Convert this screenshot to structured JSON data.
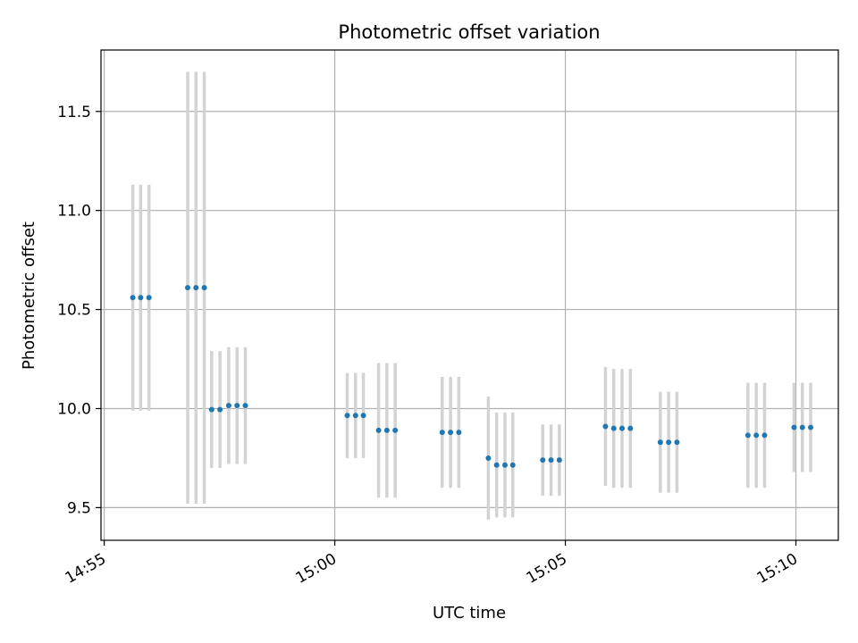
{
  "chart_data": {
    "type": "scatter",
    "title": "Photometric offset variation",
    "xlabel": "UTC time",
    "ylabel": "Photometric offset",
    "x_unit": "minutes past 14:00 UTC",
    "x_tick_values": [
      55,
      60,
      65,
      70
    ],
    "x_tick_labels": [
      "14:55",
      "15:00",
      "15:05",
      "15:10"
    ],
    "y_ticks": [
      9.5,
      10.0,
      10.5,
      11.0,
      11.5
    ],
    "y_tick_labels": [
      "9.5",
      "10.0",
      "10.5",
      "11.0",
      "11.5"
    ],
    "xlim": [
      54.93,
      70.92
    ],
    "ylim": [
      9.335,
      11.81
    ],
    "grid": true,
    "colors": {
      "point": "#1f77b4",
      "errorbar": "#d3d3d3",
      "grid": "#b0b0b0"
    },
    "series": [
      {
        "points": [
          {
            "x": 55.62,
            "y": 10.56,
            "err": 0.57
          },
          {
            "x": 55.79,
            "y": 10.56,
            "err": 0.57
          },
          {
            "x": 55.97,
            "y": 10.56,
            "err": 0.57
          },
          {
            "x": 56.81,
            "y": 10.61,
            "err": 1.09
          },
          {
            "x": 56.99,
            "y": 10.61,
            "err": 1.09
          },
          {
            "x": 57.17,
            "y": 10.61,
            "err": 1.09
          },
          {
            "x": 57.33,
            "y": 9.995,
            "err": 0.295
          },
          {
            "x": 57.51,
            "y": 9.995,
            "err": 0.295
          },
          {
            "x": 57.7,
            "y": 10.015,
            "err": 0.295
          },
          {
            "x": 57.88,
            "y": 10.015,
            "err": 0.295
          },
          {
            "x": 58.06,
            "y": 10.015,
            "err": 0.295
          },
          {
            "x": 60.27,
            "y": 9.965,
            "err": 0.215
          },
          {
            "x": 60.45,
            "y": 9.965,
            "err": 0.215
          },
          {
            "x": 60.62,
            "y": 9.965,
            "err": 0.215
          },
          {
            "x": 60.95,
            "y": 9.89,
            "err": 0.34
          },
          {
            "x": 61.13,
            "y": 9.89,
            "err": 0.34
          },
          {
            "x": 61.31,
            "y": 9.89,
            "err": 0.34
          },
          {
            "x": 62.33,
            "y": 9.88,
            "err": 0.28
          },
          {
            "x": 62.51,
            "y": 9.88,
            "err": 0.28
          },
          {
            "x": 62.69,
            "y": 9.88,
            "err": 0.28
          },
          {
            "x": 63.33,
            "y": 9.75,
            "err": 0.31
          },
          {
            "x": 63.51,
            "y": 9.715,
            "err": 0.265
          },
          {
            "x": 63.69,
            "y": 9.715,
            "err": 0.265
          },
          {
            "x": 63.86,
            "y": 9.715,
            "err": 0.265
          },
          {
            "x": 64.51,
            "y": 9.74,
            "err": 0.18
          },
          {
            "x": 64.69,
            "y": 9.74,
            "err": 0.18
          },
          {
            "x": 64.87,
            "y": 9.74,
            "err": 0.18
          },
          {
            "x": 65.87,
            "y": 9.91,
            "err": 0.3
          },
          {
            "x": 66.05,
            "y": 9.9,
            "err": 0.3
          },
          {
            "x": 66.23,
            "y": 9.9,
            "err": 0.3
          },
          {
            "x": 66.41,
            "y": 9.9,
            "err": 0.3
          },
          {
            "x": 67.06,
            "y": 9.83,
            "err": 0.255
          },
          {
            "x": 67.24,
            "y": 9.83,
            "err": 0.255
          },
          {
            "x": 67.42,
            "y": 9.83,
            "err": 0.255
          },
          {
            "x": 68.96,
            "y": 9.865,
            "err": 0.265
          },
          {
            "x": 69.14,
            "y": 9.865,
            "err": 0.265
          },
          {
            "x": 69.32,
            "y": 9.865,
            "err": 0.265
          },
          {
            "x": 69.96,
            "y": 9.905,
            "err": 0.225
          },
          {
            "x": 70.14,
            "y": 9.905,
            "err": 0.225
          },
          {
            "x": 70.32,
            "y": 9.905,
            "err": 0.225
          }
        ]
      }
    ]
  }
}
